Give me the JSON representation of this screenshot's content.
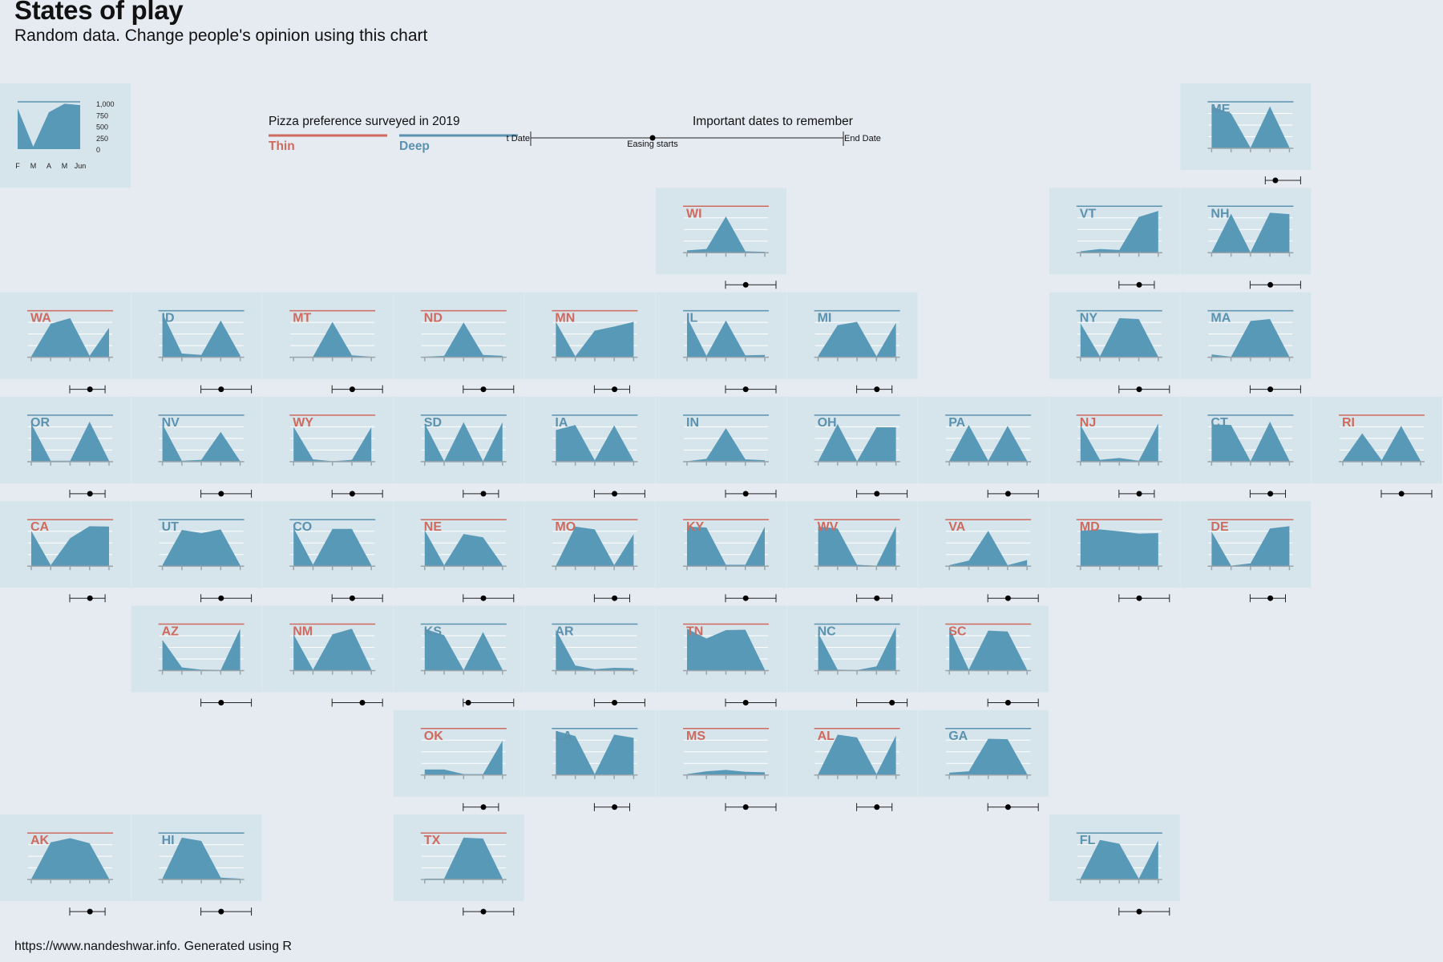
{
  "title": "States of play",
  "subtitle": "Random data. Change people's opinion using this chart",
  "caption": "https://www.nandeshwar.info. Generated using R",
  "colors": {
    "background": "#e6ebf2",
    "tile": "#d6e4eb",
    "area": "#5899b8",
    "thin": "#cf6a5e",
    "deep": "#5b92b0",
    "gridline": "#ffffff",
    "axis": "#9aa4ab"
  },
  "legend": {
    "title": "Pizza preference surveyed in 2019",
    "thin_label": "Thin",
    "deep_label": "Deep"
  },
  "timeline": {
    "title": "Important dates to remember",
    "start_label": "t Date",
    "middle_label": "Easing starts",
    "end_label": "End Date"
  },
  "key_chart": {
    "x_labels": [
      "F",
      "M",
      "A",
      "M",
      "Jun"
    ],
    "y_labels": [
      "1,000",
      "750",
      "500",
      "250",
      "0"
    ],
    "values": [
      860,
      50,
      780,
      960,
      930
    ]
  },
  "chart_data": {
    "type": "area",
    "x": [
      "F",
      "M",
      "A",
      "M",
      "Jun"
    ],
    "ylim": [
      0,
      1000
    ],
    "series": [
      {
        "name": "ME",
        "leaning": "deep",
        "values": [
          900,
          750,
          10,
          900,
          20
        ],
        "timeline": [
          0.3,
          0.5,
          1.0
        ]
      },
      {
        "name": "WI",
        "leaning": "thin",
        "values": [
          50,
          80,
          780,
          30,
          20
        ],
        "timeline": [
          0.0,
          0.4,
          1.0
        ]
      },
      {
        "name": "VT",
        "leaning": "deep",
        "values": [
          30,
          80,
          60,
          770,
          900
        ],
        "timeline": [
          0.0,
          0.4,
          0.7
        ]
      },
      {
        "name": "NH",
        "leaning": "deep",
        "values": [
          10,
          840,
          10,
          860,
          830
        ],
        "timeline": [
          0.0,
          0.4,
          1.0
        ]
      },
      {
        "name": "WA",
        "leaning": "thin",
        "values": [
          20,
          720,
          840,
          30,
          630
        ],
        "timeline": [
          0.0,
          0.4,
          0.7
        ]
      },
      {
        "name": "ID",
        "leaning": "deep",
        "values": [
          950,
          80,
          50,
          790,
          40
        ],
        "timeline": [
          0.0,
          0.4,
          1.0
        ]
      },
      {
        "name": "MT",
        "leaning": "thin",
        "values": [
          10,
          10,
          760,
          40,
          10
        ],
        "timeline": [
          0.0,
          0.4,
          1.0
        ]
      },
      {
        "name": "ND",
        "leaning": "thin",
        "values": [
          10,
          30,
          750,
          50,
          30
        ],
        "timeline": [
          0.0,
          0.4,
          1.0
        ]
      },
      {
        "name": "MN",
        "leaning": "thin",
        "values": [
          760,
          20,
          570,
          660,
          760
        ],
        "timeline": [
          0.0,
          0.4,
          0.7
        ]
      },
      {
        "name": "IL",
        "leaning": "deep",
        "values": [
          860,
          30,
          790,
          40,
          50
        ],
        "timeline": [
          0.0,
          0.4,
          1.0
        ]
      },
      {
        "name": "MI",
        "leaning": "deep",
        "values": [
          30,
          690,
          760,
          20,
          740
        ],
        "timeline": [
          0.0,
          0.4,
          0.7
        ]
      },
      {
        "name": "NY",
        "leaning": "deep",
        "values": [
          730,
          20,
          840,
          820,
          10
        ],
        "timeline": [
          0.0,
          0.4,
          1.0
        ]
      },
      {
        "name": "MA",
        "leaning": "deep",
        "values": [
          60,
          10,
          780,
          820,
          10
        ],
        "timeline": [
          0.0,
          0.4,
          1.0
        ]
      },
      {
        "name": "OR",
        "leaning": "deep",
        "values": [
          820,
          20,
          20,
          860,
          20
        ],
        "timeline": [
          0.0,
          0.4,
          0.7
        ]
      },
      {
        "name": "NV",
        "leaning": "deep",
        "values": [
          810,
          20,
          40,
          640,
          10
        ],
        "timeline": [
          0.0,
          0.4,
          1.0
        ]
      },
      {
        "name": "WY",
        "leaning": "thin",
        "values": [
          750,
          50,
          10,
          40,
          740
        ],
        "timeline": [
          0.0,
          0.4,
          1.0
        ]
      },
      {
        "name": "SD",
        "leaning": "deep",
        "values": [
          820,
          10,
          850,
          10,
          850
        ],
        "timeline": [
          0.0,
          0.4,
          0.7
        ]
      },
      {
        "name": "IA",
        "leaning": "deep",
        "values": [
          680,
          790,
          30,
          780,
          20
        ],
        "timeline": [
          0.0,
          0.4,
          1.0
        ]
      },
      {
        "name": "IN",
        "leaning": "deep",
        "values": [
          10,
          60,
          720,
          50,
          30
        ],
        "timeline": [
          0.0,
          0.4,
          1.0
        ]
      },
      {
        "name": "OH",
        "leaning": "deep",
        "values": [
          10,
          810,
          10,
          740,
          740
        ],
        "timeline": [
          0.0,
          0.4,
          1.0
        ]
      },
      {
        "name": "PA",
        "leaning": "deep",
        "values": [
          20,
          790,
          20,
          770,
          20
        ],
        "timeline": [
          0.0,
          0.4,
          1.0
        ]
      },
      {
        "name": "NJ",
        "leaning": "thin",
        "values": [
          790,
          40,
          80,
          20,
          820
        ],
        "timeline": [
          0.0,
          0.4,
          0.7
        ]
      },
      {
        "name": "CT",
        "leaning": "deep",
        "values": [
          800,
          790,
          10,
          860,
          20
        ],
        "timeline": [
          0.0,
          0.4,
          0.7
        ]
      },
      {
        "name": "RI",
        "leaning": "thin",
        "values": [
          20,
          610,
          30,
          770,
          20
        ],
        "timeline": [
          0.0,
          0.4,
          1.0
        ]
      },
      {
        "name": "CA",
        "leaning": "thin",
        "values": [
          760,
          20,
          600,
          860,
          850
        ],
        "timeline": [
          0.0,
          0.4,
          0.7
        ]
      },
      {
        "name": "UT",
        "leaning": "deep",
        "values": [
          20,
          780,
          710,
          790,
          20
        ],
        "timeline": [
          0.0,
          0.4,
          1.0
        ]
      },
      {
        "name": "CO",
        "leaning": "deep",
        "values": [
          820,
          30,
          800,
          800,
          20
        ],
        "timeline": [
          0.0,
          0.4,
          1.0
        ]
      },
      {
        "name": "NE",
        "leaning": "thin",
        "values": [
          770,
          20,
          690,
          620,
          20
        ],
        "timeline": [
          0.0,
          0.4,
          1.0
        ]
      },
      {
        "name": "MO",
        "leaning": "thin",
        "values": [
          10,
          850,
          790,
          20,
          690
        ],
        "timeline": [
          0.0,
          0.4,
          0.7
        ]
      },
      {
        "name": "KY",
        "leaning": "thin",
        "values": [
          850,
          830,
          30,
          30,
          850
        ],
        "timeline": [
          0.0,
          0.4,
          1.0
        ]
      },
      {
        "name": "WV",
        "leaning": "thin",
        "values": [
          850,
          810,
          30,
          10,
          860
        ],
        "timeline": [
          0.0,
          0.4,
          0.7
        ]
      },
      {
        "name": "VA",
        "leaning": "thin",
        "values": [
          20,
          120,
          760,
          20,
          130
        ],
        "timeline": [
          0.0,
          0.4,
          1.0
        ]
      },
      {
        "name": "MD",
        "leaning": "thin",
        "values": [
          760,
          790,
          750,
          700,
          710
        ],
        "timeline": [
          0.0,
          0.4,
          1.0
        ]
      },
      {
        "name": "DE",
        "leaning": "thin",
        "values": [
          740,
          10,
          60,
          810,
          860
        ],
        "timeline": [
          0.0,
          0.4,
          0.7
        ]
      },
      {
        "name": "AZ",
        "leaning": "thin",
        "values": [
          660,
          70,
          20,
          10,
          900
        ],
        "timeline": [
          0.0,
          0.4,
          1.0
        ]
      },
      {
        "name": "NM",
        "leaning": "thin",
        "values": [
          780,
          20,
          780,
          900,
          20
        ],
        "timeline": [
          0.0,
          0.6,
          1.0
        ]
      },
      {
        "name": "KS",
        "leaning": "deep",
        "values": [
          900,
          760,
          10,
          830,
          20
        ],
        "timeline": [
          0.0,
          0.1,
          1.0
        ]
      },
      {
        "name": "AR",
        "leaning": "deep",
        "values": [
          880,
          110,
          30,
          60,
          50
        ],
        "timeline": [
          0.0,
          0.4,
          1.0
        ]
      },
      {
        "name": "TN",
        "leaning": "thin",
        "values": [
          900,
          690,
          870,
          880,
          20
        ],
        "timeline": [
          0.0,
          0.4,
          1.0
        ]
      },
      {
        "name": "NC",
        "leaning": "deep",
        "values": [
          810,
          20,
          10,
          90,
          940
        ],
        "timeline": [
          0.0,
          0.7,
          1.0
        ]
      },
      {
        "name": "SC",
        "leaning": "thin",
        "values": [
          920,
          20,
          860,
          840,
          20
        ],
        "timeline": [
          0.0,
          0.4,
          1.0
        ]
      },
      {
        "name": "OK",
        "leaning": "thin",
        "values": [
          120,
          120,
          20,
          20,
          740
        ],
        "timeline": [
          0.0,
          0.4,
          0.7
        ]
      },
      {
        "name": "LA",
        "leaning": "deep",
        "values": [
          950,
          840,
          20,
          870,
          800
        ],
        "timeline": [
          0.0,
          0.4,
          0.7
        ]
      },
      {
        "name": "MS",
        "leaning": "thin",
        "values": [
          20,
          80,
          110,
          70,
          60
        ],
        "timeline": [
          0.0,
          0.4,
          1.0
        ]
      },
      {
        "name": "AL",
        "leaning": "thin",
        "values": [
          20,
          870,
          810,
          20,
          850
        ],
        "timeline": [
          0.0,
          0.4,
          0.7
        ]
      },
      {
        "name": "GA",
        "leaning": "deep",
        "values": [
          50,
          80,
          780,
          770,
          20
        ],
        "timeline": [
          0.0,
          0.4,
          1.0
        ]
      },
      {
        "name": "AK",
        "leaning": "thin",
        "values": [
          10,
          800,
          890,
          780,
          20
        ],
        "timeline": [
          0.0,
          0.4,
          0.7
        ]
      },
      {
        "name": "HI",
        "leaning": "deep",
        "values": [
          20,
          900,
          830,
          40,
          20
        ],
        "timeline": [
          0.0,
          0.4,
          1.0
        ]
      },
      {
        "name": "TX",
        "leaning": "thin",
        "values": [
          20,
          20,
          900,
          880,
          20
        ],
        "timeline": [
          0.0,
          0.4,
          1.0
        ]
      },
      {
        "name": "FL",
        "leaning": "deep",
        "values": [
          20,
          850,
          770,
          20,
          840
        ],
        "timeline": [
          0.0,
          0.4,
          1.0
        ]
      }
    ]
  }
}
